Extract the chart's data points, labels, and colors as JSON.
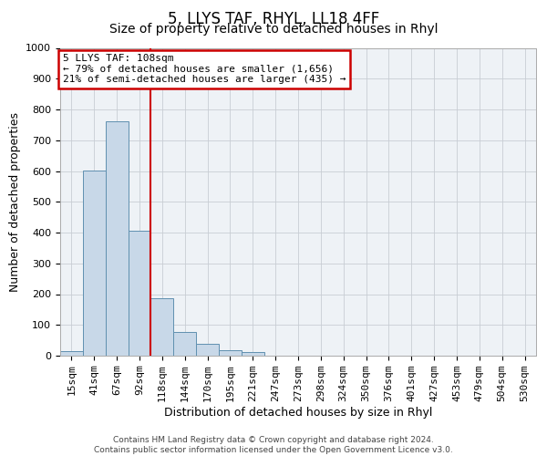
{
  "title": "5, LLYS TAF, RHYL, LL18 4FF",
  "subtitle": "Size of property relative to detached houses in Rhyl",
  "xlabel": "Distribution of detached houses by size in Rhyl",
  "ylabel": "Number of detached properties",
  "footer_line1": "Contains HM Land Registry data © Crown copyright and database right 2024.",
  "footer_line2": "Contains public sector information licensed under the Open Government Licence v3.0.",
  "bar_labels": [
    "15sqm",
    "41sqm",
    "67sqm",
    "92sqm",
    "118sqm",
    "144sqm",
    "170sqm",
    "195sqm",
    "221sqm",
    "247sqm",
    "273sqm",
    "298sqm",
    "324sqm",
    "350sqm",
    "376sqm",
    "401sqm",
    "427sqm",
    "453sqm",
    "479sqm",
    "504sqm",
    "530sqm"
  ],
  "bar_values": [
    15,
    601,
    762,
    405,
    188,
    78,
    40,
    18,
    12,
    0,
    0,
    0,
    0,
    0,
    0,
    0,
    0,
    0,
    0,
    0,
    0
  ],
  "bar_color": "#c8d8e8",
  "bar_edge_color": "#6090b0",
  "ylim": [
    0,
    1000
  ],
  "yticks": [
    0,
    100,
    200,
    300,
    400,
    500,
    600,
    700,
    800,
    900,
    1000
  ],
  "vline_x_index": 4,
  "marker_label": "5 LLYS TAF: 108sqm",
  "annotation_line1": "← 79% of detached houses are smaller (1,656)",
  "annotation_line2": "21% of semi-detached houses are larger (435) →",
  "annotation_box_color": "#ffffff",
  "annotation_box_edge": "#cc0000",
  "vline_color": "#cc0000",
  "bg_color": "#eef2f6",
  "grid_color": "#c8cdd4",
  "title_fontsize": 12,
  "subtitle_fontsize": 10,
  "axis_label_fontsize": 9,
  "tick_fontsize": 8
}
